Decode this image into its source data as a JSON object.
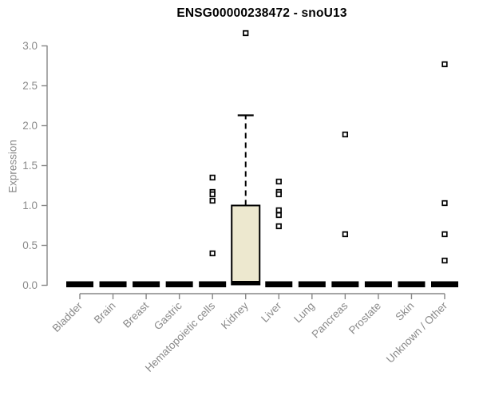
{
  "title": "ENSG00000238472 - snoU13",
  "colors": {
    "axis": "#878787",
    "tick_label": "#8a8a8a",
    "title_text": "#000000",
    "box_fill": "#EDE8CF",
    "box_stroke": "#000000",
    "outlier_stroke": "#000000",
    "outlier_fill": "#ffffff"
  },
  "chart_data": {
    "type": "boxplot",
    "title": "ENSG00000238472 - snoU13",
    "xlabel": "",
    "ylabel": "Expression",
    "ylim": [
      0.0,
      3.0
    ],
    "yticks": [
      "0.0",
      "0.5",
      "1.0",
      "1.5",
      "2.0",
      "2.5",
      "3.0"
    ],
    "ytick_values": [
      0.0,
      0.5,
      1.0,
      1.5,
      2.0,
      2.5,
      3.0
    ],
    "grid": false,
    "legend": null,
    "categories": [
      "Bladder",
      "Brain",
      "Breast",
      "Gastric",
      "Hematopoietic cells",
      "Kidney",
      "Liver",
      "Lung",
      "Pancreas",
      "Prostate",
      "Skin",
      "Unknown / Other"
    ],
    "boxes": [
      {
        "category": "Bladder",
        "q1": 0.0,
        "median": 0.02,
        "q3": 0.04,
        "whisker_low": 0.0,
        "whisker_high": 0.04,
        "outliers": []
      },
      {
        "category": "Brain",
        "q1": 0.0,
        "median": 0.02,
        "q3": 0.04,
        "whisker_low": 0.0,
        "whisker_high": 0.04,
        "outliers": []
      },
      {
        "category": "Breast",
        "q1": 0.0,
        "median": 0.02,
        "q3": 0.04,
        "whisker_low": 0.0,
        "whisker_high": 0.04,
        "outliers": []
      },
      {
        "category": "Gastric",
        "q1": 0.0,
        "median": 0.02,
        "q3": 0.04,
        "whisker_low": 0.0,
        "whisker_high": 0.04,
        "outliers": []
      },
      {
        "category": "Hematopoietic cells",
        "q1": 0.0,
        "median": 0.02,
        "q3": 0.04,
        "whisker_low": 0.0,
        "whisker_high": 0.04,
        "outliers": [
          1.35,
          1.17,
          1.14,
          1.06,
          0.4
        ]
      },
      {
        "category": "Kidney",
        "q1": 0.01,
        "median": 0.02,
        "q3": 1.0,
        "whisker_low": 0.01,
        "whisker_high": 2.13,
        "outliers": [
          3.16
        ]
      },
      {
        "category": "Liver",
        "q1": 0.0,
        "median": 0.02,
        "q3": 0.04,
        "whisker_low": 0.0,
        "whisker_high": 0.04,
        "outliers": [
          1.3,
          1.17,
          1.14,
          0.94,
          0.88,
          0.74
        ]
      },
      {
        "category": "Lung",
        "q1": 0.0,
        "median": 0.02,
        "q3": 0.04,
        "whisker_low": 0.0,
        "whisker_high": 0.04,
        "outliers": []
      },
      {
        "category": "Pancreas",
        "q1": 0.0,
        "median": 0.02,
        "q3": 0.04,
        "whisker_low": 0.0,
        "whisker_high": 0.04,
        "outliers": [
          1.89,
          0.64
        ]
      },
      {
        "category": "Prostate",
        "q1": 0.0,
        "median": 0.02,
        "q3": 0.04,
        "whisker_low": 0.0,
        "whisker_high": 0.04,
        "outliers": []
      },
      {
        "category": "Skin",
        "q1": 0.0,
        "median": 0.02,
        "q3": 0.04,
        "whisker_low": 0.0,
        "whisker_high": 0.04,
        "outliers": []
      },
      {
        "category": "Unknown / Other",
        "q1": 0.0,
        "median": 0.02,
        "q3": 0.04,
        "whisker_low": 0.0,
        "whisker_high": 0.04,
        "outliers": [
          2.77,
          1.03,
          0.64,
          0.31
        ]
      }
    ]
  }
}
